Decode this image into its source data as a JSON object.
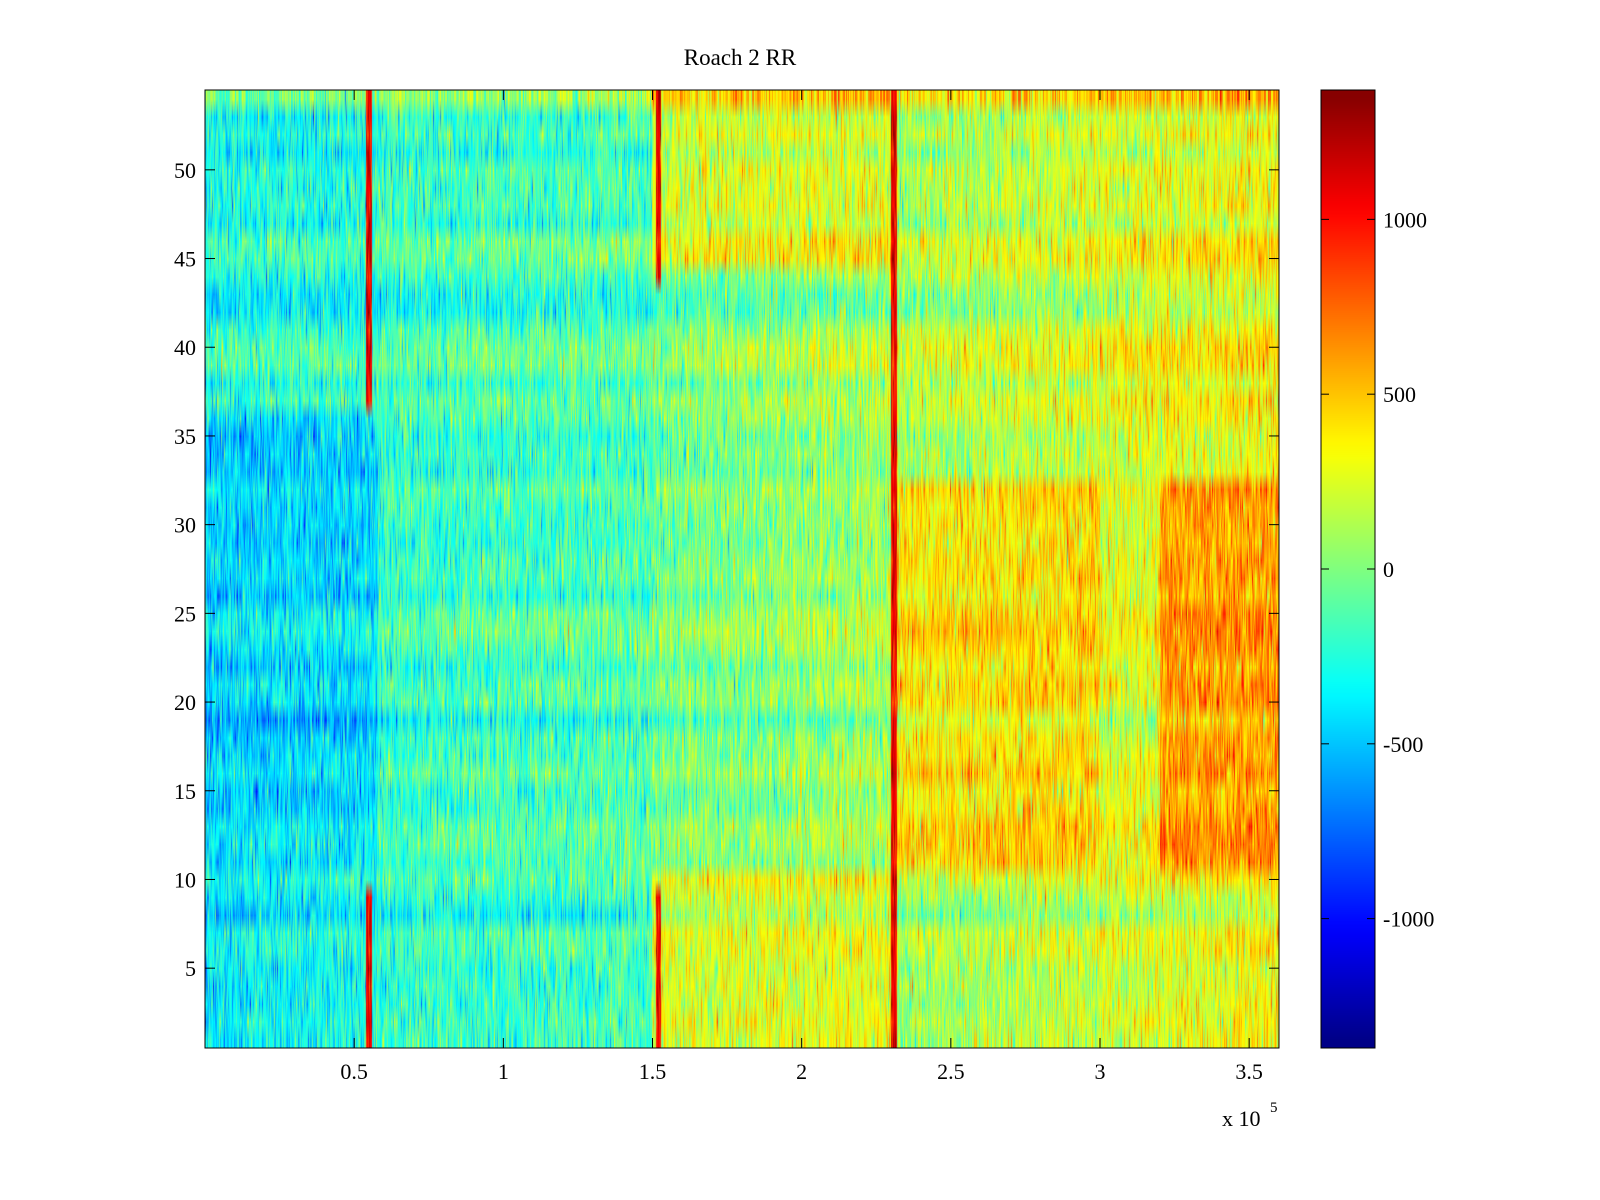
{
  "chart_data": {
    "type": "heatmap",
    "title": "Roach 2 RR",
    "xlabel": "",
    "ylabel": "",
    "x_range": [
      0,
      360000
    ],
    "y_range": [
      0.5,
      54.5
    ],
    "x_multiplier_label": "x 10",
    "x_multiplier_exponent": "5",
    "x_ticks": [
      50000,
      100000,
      150000,
      200000,
      250000,
      300000,
      350000
    ],
    "x_tick_labels": [
      "0.5",
      "1",
      "1.5",
      "2",
      "2.5",
      "3",
      "3.5"
    ],
    "y_ticks": [
      5,
      10,
      15,
      20,
      25,
      30,
      35,
      40,
      45,
      50
    ],
    "y_tick_labels": [
      "5",
      "10",
      "15",
      "20",
      "25",
      "30",
      "35",
      "40",
      "45",
      "50"
    ],
    "rows": 54,
    "colorbar": {
      "colormap": "jet",
      "range": [
        -1370,
        1370
      ],
      "ticks": [
        1000,
        500,
        0,
        -500,
        -1000
      ],
      "tick_labels": [
        "1000",
        "500",
        "0",
        "-500",
        "-1000"
      ]
    },
    "description_of_structure": {
      "strong_vertical_lines_x": [
        55000,
        152000,
        231000
      ],
      "regions": [
        {
          "x": [
            0,
            58000
          ],
          "y": [
            10.5,
            36.5
          ],
          "mean": -520
        },
        {
          "x": [
            0,
            58000
          ],
          "y": [
            36.5,
            54.5
          ],
          "mean": -250
        },
        {
          "x": [
            58000,
            150000
          ],
          "y": [
            0.5,
            54.5
          ],
          "mean": -180
        },
        {
          "x": [
            150000,
            230000
          ],
          "y": [
            0.5,
            10.5
          ],
          "mean": 420
        },
        {
          "x": [
            150000,
            230000
          ],
          "y": [
            44.5,
            54.5
          ],
          "mean": 380
        },
        {
          "x": [
            230000,
            300000
          ],
          "y": [
            10.5,
            32.5
          ],
          "mean": 520
        },
        {
          "x": [
            320000,
            360000
          ],
          "y": [
            10.5,
            32.5
          ],
          "mean": 750
        }
      ]
    }
  }
}
